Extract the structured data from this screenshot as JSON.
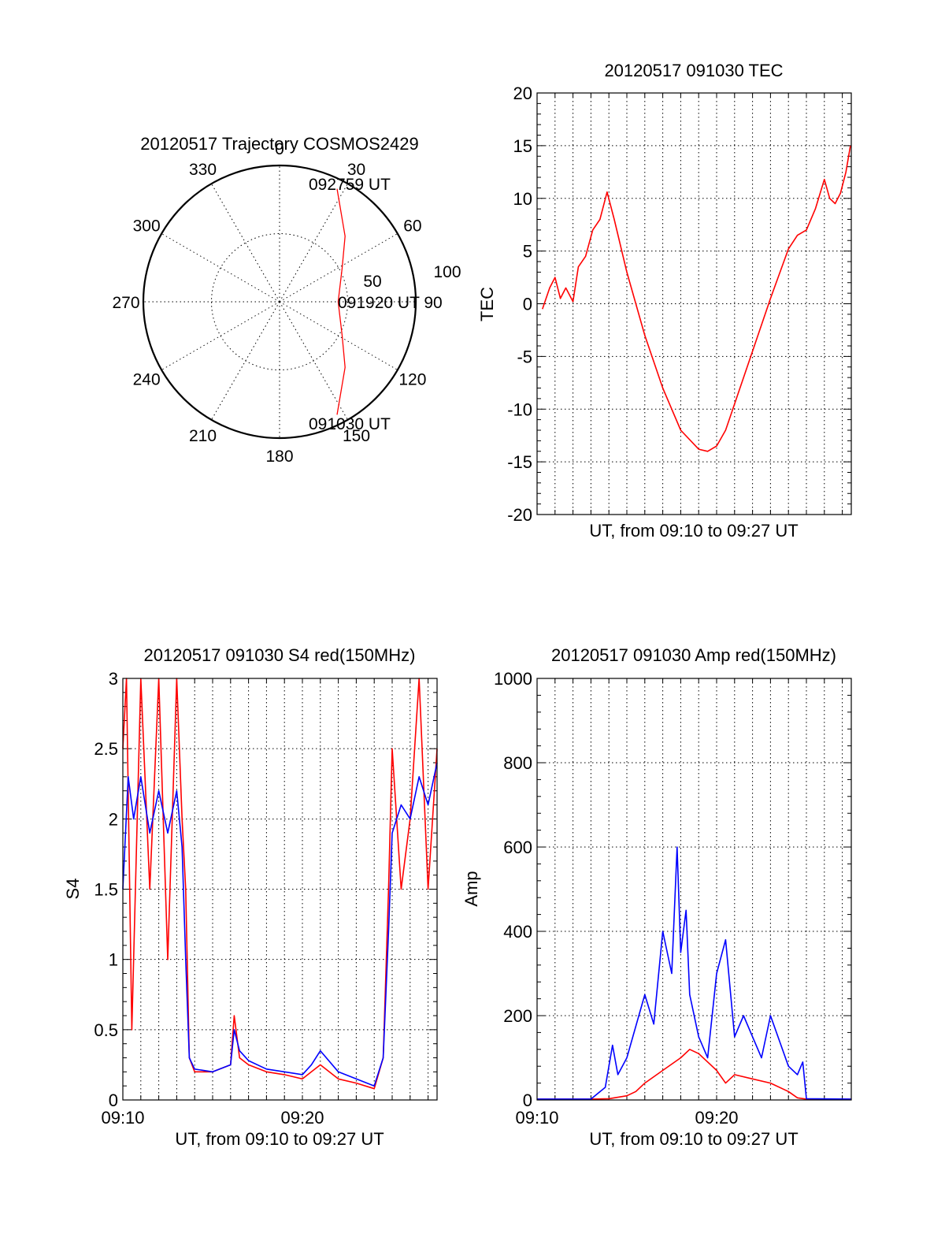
{
  "colors": {
    "red": "#ff0000",
    "blue": "#0000ff",
    "axis": "#000000",
    "background": "#ffffff"
  },
  "polar": {
    "title": "20120517 Trajectory COSMOS2429",
    "angle_labels": [
      "0",
      "30",
      "60",
      "90",
      "120",
      "150",
      "180",
      "210",
      "240",
      "270",
      "300",
      "330"
    ],
    "radius_labels": [
      "50",
      "100"
    ],
    "start_label": "091030 UT",
    "mid_label": "091920 UT",
    "end_label": "092759 UT"
  },
  "chart_data": [
    {
      "id": "trajectory",
      "type": "scatter",
      "title": "20120517 Trajectory COSMOS2429",
      "coordinate_system": "polar",
      "theta_ticks": [
        0,
        30,
        60,
        90,
        120,
        150,
        180,
        210,
        240,
        270,
        300,
        330
      ],
      "r_ticks": [
        50,
        100
      ],
      "series": [
        {
          "color": "#ff0000",
          "points": [
            {
              "theta": 153,
              "r": 93
            },
            {
              "theta": 135,
              "r": 68
            },
            {
              "theta": 118,
              "r": 52
            },
            {
              "theta": 90,
              "r": 43
            },
            {
              "theta": 62,
              "r": 52
            },
            {
              "theta": 45,
              "r": 68
            },
            {
              "theta": 27,
              "r": 93
            }
          ]
        }
      ],
      "annotations": [
        {
          "text": "091030 UT",
          "at": "start"
        },
        {
          "text": "091920 UT",
          "at": "middle"
        },
        {
          "text": "092759 UT",
          "at": "end"
        }
      ]
    },
    {
      "id": "tec",
      "type": "line",
      "title": "20120517 091030 TEC",
      "xlabel": "UT, from 09:10 to 09:27 UT",
      "ylabel": "TEC",
      "xlim": [
        0,
        17.5
      ],
      "ylim": [
        -20,
        20
      ],
      "yticks": [
        20,
        15,
        10,
        5,
        0,
        -5,
        -10,
        -15,
        -20
      ],
      "grid": true,
      "series": [
        {
          "color": "#ff0000",
          "x": [
            0.3,
            0.7,
            1.0,
            1.3,
            1.6,
            2.0,
            2.3,
            2.7,
            3.1,
            3.5,
            3.9,
            4.3,
            5.0,
            6.0,
            7.0,
            8.0,
            9.0,
            9.5,
            10.0,
            10.5,
            11.0,
            12.0,
            13.0,
            14.0,
            14.5,
            15.0,
            15.5,
            16.0,
            16.3,
            16.6,
            16.9,
            17.2,
            17.45
          ],
          "y": [
            -0.5,
            1.5,
            2.5,
            0.5,
            1.5,
            0.2,
            3.5,
            4.5,
            7.0,
            8.0,
            10.6,
            8.0,
            3.0,
            -3.0,
            -8.0,
            -12.0,
            -13.8,
            -14.0,
            -13.5,
            -12.0,
            -9.5,
            -4.5,
            0.5,
            5.2,
            6.5,
            7.0,
            9.0,
            11.8,
            10.0,
            9.5,
            10.5,
            12.5,
            15.0
          ]
        }
      ]
    },
    {
      "id": "s4",
      "type": "line",
      "title": "20120517 091030 S4 red(150MHz)",
      "xlabel": "UT, from 09:10 to 09:27 UT",
      "ylabel": "S4",
      "xticks": [
        "09:10",
        "09:20"
      ],
      "xlim": [
        0,
        17.5
      ],
      "ylim": [
        0,
        3
      ],
      "yticks": [
        0,
        0.5,
        1,
        1.5,
        2,
        2.5,
        3
      ],
      "grid": true,
      "series": [
        {
          "color": "#ff0000",
          "x": [
            0.0,
            0.2,
            0.5,
            1.0,
            1.5,
            2.0,
            2.5,
            3.0,
            3.3,
            3.5,
            3.7,
            4.0,
            5.0,
            6.0,
            6.2,
            6.5,
            7.0,
            8.0,
            9.0,
            10.0,
            10.5,
            11.0,
            12.0,
            13.0,
            14.0,
            14.5,
            14.8,
            15.0,
            15.5,
            16.0,
            16.5,
            17.0,
            17.5
          ],
          "y": [
            2.5,
            3.0,
            0.5,
            3.0,
            1.5,
            3.0,
            1.0,
            3.0,
            2.0,
            1.5,
            0.3,
            0.2,
            0.2,
            0.25,
            0.6,
            0.3,
            0.25,
            0.2,
            0.18,
            0.15,
            0.2,
            0.25,
            0.15,
            0.12,
            0.08,
            0.3,
            1.5,
            2.5,
            1.5,
            2.0,
            3.0,
            1.5,
            2.5
          ]
        },
        {
          "color": "#0000ff",
          "x": [
            0.0,
            0.3,
            0.6,
            1.0,
            1.5,
            2.0,
            2.5,
            3.0,
            3.3,
            3.5,
            3.7,
            4.0,
            5.0,
            6.0,
            6.2,
            6.5,
            7.0,
            8.0,
            9.0,
            10.0,
            10.5,
            11.0,
            12.0,
            13.0,
            14.0,
            14.5,
            14.8,
            15.0,
            15.5,
            16.0,
            16.5,
            17.0,
            17.5
          ],
          "y": [
            1.5,
            2.3,
            2.0,
            2.3,
            1.9,
            2.2,
            1.9,
            2.2,
            1.8,
            1.0,
            0.3,
            0.22,
            0.2,
            0.25,
            0.5,
            0.35,
            0.28,
            0.22,
            0.2,
            0.18,
            0.25,
            0.35,
            0.2,
            0.15,
            0.1,
            0.3,
            1.2,
            1.9,
            2.1,
            2.0,
            2.3,
            2.1,
            2.4
          ]
        }
      ]
    },
    {
      "id": "amp",
      "type": "line",
      "title": "20120517 091030 Amp red(150MHz)",
      "xlabel": "UT, from 09:10 to 09:27 UT",
      "ylabel": "Amp",
      "xticks": [
        "09:10",
        "09:20"
      ],
      "xlim": [
        0,
        17.5
      ],
      "ylim": [
        0,
        1000
      ],
      "yticks": [
        0,
        200,
        400,
        600,
        800,
        1000
      ],
      "grid": true,
      "series": [
        {
          "color": "#ff0000",
          "x": [
            0.0,
            3.0,
            4.0,
            5.0,
            5.5,
            6.0,
            7.0,
            8.0,
            8.5,
            9.0,
            9.5,
            10.0,
            10.5,
            11.0,
            12.0,
            13.0,
            14.0,
            14.5,
            15.0,
            17.5
          ],
          "y": [
            2,
            2,
            3,
            10,
            20,
            40,
            70,
            100,
            120,
            110,
            90,
            70,
            40,
            60,
            50,
            40,
            20,
            5,
            2,
            2
          ]
        },
        {
          "color": "#0000ff",
          "x": [
            0.0,
            3.0,
            3.8,
            4.2,
            4.5,
            5.0,
            6.0,
            6.5,
            7.0,
            7.5,
            7.8,
            8.0,
            8.3,
            8.5,
            9.0,
            9.5,
            10.0,
            10.5,
            11.0,
            11.5,
            12.0,
            12.5,
            13.0,
            14.0,
            14.5,
            14.8,
            15.0,
            17.5
          ],
          "y": [
            2,
            2,
            30,
            130,
            60,
            100,
            250,
            180,
            400,
            300,
            600,
            350,
            450,
            250,
            150,
            100,
            300,
            380,
            150,
            200,
            150,
            100,
            200,
            80,
            60,
            90,
            3,
            2
          ]
        }
      ]
    }
  ]
}
